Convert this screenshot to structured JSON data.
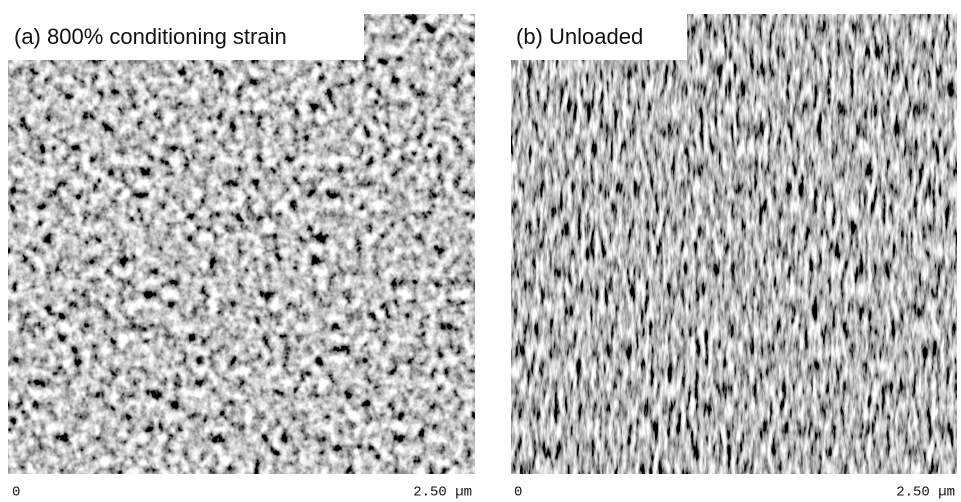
{
  "panels": [
    {
      "label": "(a) 800% conditioning strain",
      "scale_start": "0",
      "scale_end": "2.50 µm"
    },
    {
      "label": "(b) Unloaded",
      "scale_start": "0",
      "scale_end": "2.50 µm"
    }
  ]
}
